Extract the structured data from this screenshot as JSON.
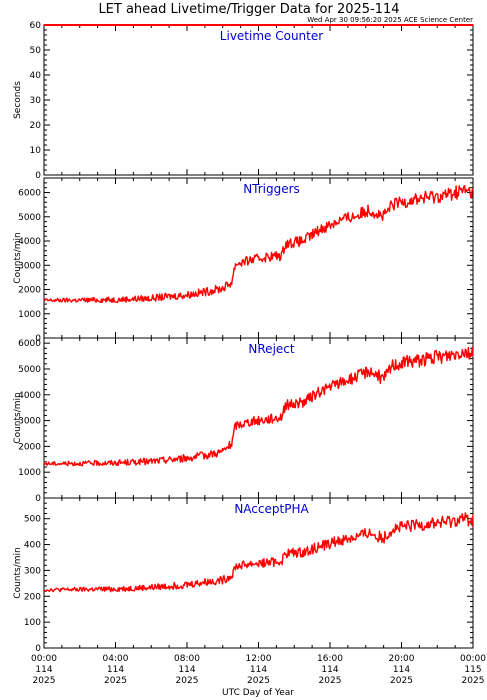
{
  "title": "LET ahead Livetime/Trigger Data for 2025-114",
  "timestamp": "Wed Apr 30 09:56:20 2025 ACE Science Center",
  "x_axis": {
    "label": "UTC Day of Year",
    "ticks": [
      {
        "time": "00:00",
        "doy": "114",
        "year": "2025"
      },
      {
        "time": "04:00",
        "doy": "114",
        "year": "2025"
      },
      {
        "time": "08:00",
        "doy": "114",
        "year": "2025"
      },
      {
        "time": "12:00",
        "doy": "114",
        "year": "2025"
      },
      {
        "time": "16:00",
        "doy": "114",
        "year": "2025"
      },
      {
        "time": "20:00",
        "doy": "114",
        "year": "2025"
      },
      {
        "time": "00:00",
        "doy": "115",
        "year": "2025"
      }
    ]
  },
  "colors": {
    "series": "#ff0000",
    "label": "#0000cc",
    "axis": "#000000"
  },
  "chart_data": [
    {
      "type": "line",
      "panel_label": "Livetime Counter",
      "ylabel": "Seconds",
      "ylim": [
        0,
        60
      ],
      "yticks": [
        0,
        10,
        20,
        30,
        40,
        50,
        60
      ],
      "xlim_hours": [
        0,
        24
      ],
      "series": [
        {
          "points": [
            [
              0,
              60
            ],
            [
              24,
              60
            ]
          ]
        }
      ]
    },
    {
      "type": "line",
      "panel_label": "NTriggers",
      "ylabel": "Counts/min",
      "ylim": [
        0,
        6600
      ],
      "yticks": [
        0,
        1000,
        2000,
        3000,
        4000,
        5000,
        6000
      ],
      "xlim_hours": [
        0,
        24
      ],
      "series": [
        {
          "points": [
            [
              0,
              1550
            ],
            [
              2,
              1560
            ],
            [
              4,
              1580
            ],
            [
              6,
              1640
            ],
            [
              8,
              1780
            ],
            [
              9,
              1900
            ],
            [
              10,
              2050
            ],
            [
              10.5,
              2300
            ],
            [
              10.7,
              3050
            ],
            [
              11.5,
              3200
            ],
            [
              12.5,
              3350
            ],
            [
              13.3,
              3400
            ],
            [
              13.5,
              3900
            ],
            [
              14.5,
              4000
            ],
            [
              15.5,
              4500
            ],
            [
              16.5,
              4850
            ],
            [
              17.5,
              5050
            ],
            [
              18.2,
              5300
            ],
            [
              19,
              5000
            ],
            [
              19.5,
              5500
            ],
            [
              20.5,
              5700
            ],
            [
              21.5,
              5800
            ],
            [
              22.5,
              5900
            ],
            [
              23.5,
              6100
            ],
            [
              24,
              5950
            ]
          ]
        }
      ]
    },
    {
      "type": "line",
      "panel_label": "NReject",
      "ylabel": "Counts/min",
      "ylim": [
        0,
        6200
      ],
      "yticks": [
        0,
        1000,
        2000,
        3000,
        4000,
        5000,
        6000
      ],
      "xlim_hours": [
        0,
        24
      ],
      "series": [
        {
          "points": [
            [
              0,
              1330
            ],
            [
              2,
              1340
            ],
            [
              4,
              1360
            ],
            [
              6,
              1420
            ],
            [
              8,
              1550
            ],
            [
              9,
              1650
            ],
            [
              10,
              1800
            ],
            [
              10.5,
              2100
            ],
            [
              10.7,
              2800
            ],
            [
              11.5,
              2950
            ],
            [
              12.5,
              3050
            ],
            [
              13.3,
              3150
            ],
            [
              13.5,
              3600
            ],
            [
              14.5,
              3700
            ],
            [
              15.5,
              4150
            ],
            [
              16.5,
              4450
            ],
            [
              17.5,
              4700
            ],
            [
              18.2,
              4950
            ],
            [
              19,
              4600
            ],
            [
              19.5,
              5150
            ],
            [
              20.5,
              5300
            ],
            [
              21.5,
              5400
            ],
            [
              22.5,
              5500
            ],
            [
              23.5,
              5700
            ],
            [
              24,
              5550
            ]
          ]
        }
      ]
    },
    {
      "type": "line",
      "panel_label": "NAcceptPHA",
      "ylabel": "Counts/min",
      "ylim": [
        0,
        580
      ],
      "yticks": [
        0,
        100,
        200,
        300,
        400,
        500
      ],
      "xlim_hours": [
        0,
        24
      ],
      "series": [
        {
          "points": [
            [
              0,
              225
            ],
            [
              2,
              226
            ],
            [
              4,
              228
            ],
            [
              6,
              234
            ],
            [
              8,
              245
            ],
            [
              9,
              255
            ],
            [
              10,
              262
            ],
            [
              10.5,
              280
            ],
            [
              10.7,
              315
            ],
            [
              11.5,
              325
            ],
            [
              12.5,
              330
            ],
            [
              13.3,
              335
            ],
            [
              13.5,
              365
            ],
            [
              14.5,
              370
            ],
            [
              15.5,
              395
            ],
            [
              16.5,
              415
            ],
            [
              17.5,
              430
            ],
            [
              18.2,
              445
            ],
            [
              19,
              425
            ],
            [
              19.5,
              460
            ],
            [
              20.5,
              470
            ],
            [
              21.5,
              480
            ],
            [
              22.5,
              485
            ],
            [
              23.5,
              500
            ],
            [
              24,
              490
            ]
          ]
        }
      ]
    }
  ]
}
